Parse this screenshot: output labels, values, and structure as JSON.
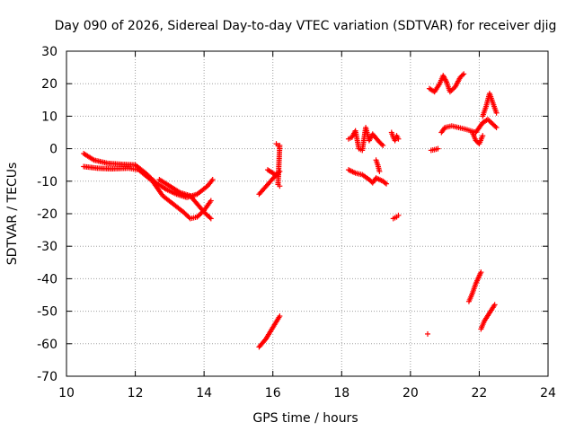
{
  "chart_data": {
    "type": "scatter",
    "title": "Day 090 of 2026, Sidereal Day-to-day VTEC variation (SDTVAR) for receiver djig",
    "xlabel": "GPS time / hours",
    "ylabel": "SDTVAR / TECUs",
    "xlim": [
      10,
      24
    ],
    "ylim": [
      -70,
      30
    ],
    "xticks": [
      10,
      12,
      14,
      16,
      18,
      20,
      22,
      24
    ],
    "yticks": [
      -70,
      -60,
      -50,
      -40,
      -30,
      -20,
      -10,
      0,
      10,
      20,
      30
    ],
    "grid": true,
    "marker": "+",
    "color": "#ff0000",
    "series": [
      {
        "name": "track-a",
        "points": [
          [
            10.5,
            -1.5
          ],
          [
            10.8,
            -3.5
          ],
          [
            11.2,
            -4.5
          ],
          [
            11.6,
            -4.8
          ],
          [
            12.0,
            -5.0
          ],
          [
            12.3,
            -7.5
          ],
          [
            12.6,
            -10.5
          ],
          [
            12.9,
            -12.5
          ],
          [
            13.2,
            -14.0
          ],
          [
            13.5,
            -15.0
          ],
          [
            13.8,
            -14.0
          ],
          [
            14.1,
            -11.5
          ],
          [
            14.25,
            -9.5
          ]
        ]
      },
      {
        "name": "track-b",
        "points": [
          [
            10.5,
            -5.5
          ],
          [
            10.9,
            -6.0
          ],
          [
            11.3,
            -6.2
          ],
          [
            11.8,
            -6.0
          ],
          [
            12.1,
            -6.5
          ],
          [
            12.5,
            -10.0
          ],
          [
            12.8,
            -14.5
          ],
          [
            13.1,
            -17.0
          ],
          [
            13.4,
            -19.5
          ],
          [
            13.6,
            -21.5
          ],
          [
            13.8,
            -21.0
          ],
          [
            14.0,
            -19.0
          ],
          [
            14.2,
            -16.0
          ]
        ]
      },
      {
        "name": "track-c",
        "points": [
          [
            12.7,
            -9.5
          ],
          [
            13.0,
            -11.5
          ],
          [
            13.3,
            -13.5
          ],
          [
            13.6,
            -14.5
          ],
          [
            13.8,
            -17.0
          ],
          [
            14.0,
            -19.5
          ],
          [
            14.2,
            -21.5
          ]
        ]
      },
      {
        "name": "track-d",
        "points": [
          [
            15.6,
            -14.0
          ],
          [
            15.85,
            -11.0
          ],
          [
            16.1,
            -8.0
          ],
          [
            16.2,
            -7.0
          ]
        ]
      },
      {
        "name": "track-e",
        "points": [
          [
            15.85,
            -6.5
          ],
          [
            16.0,
            -7.5
          ],
          [
            16.15,
            -8.5
          ]
        ]
      },
      {
        "name": "track-f",
        "points": [
          [
            16.1,
            1.5
          ],
          [
            16.15,
            1.0
          ],
          [
            16.2,
            1.0
          ],
          [
            16.15,
            -11.0
          ],
          [
            16.2,
            -11.5
          ]
        ]
      },
      {
        "name": "track-g",
        "points": [
          [
            15.6,
            -61.0
          ],
          [
            15.8,
            -58.5
          ],
          [
            16.0,
            -55.0
          ],
          [
            16.2,
            -51.5
          ]
        ]
      },
      {
        "name": "track-h",
        "points": [
          [
            18.2,
            3.0
          ],
          [
            18.3,
            3.5
          ],
          [
            18.4,
            5.5
          ],
          [
            18.5,
            0.0
          ],
          [
            18.6,
            -0.5
          ],
          [
            18.7,
            6.5
          ],
          [
            18.8,
            2.5
          ],
          [
            18.9,
            4.5
          ],
          [
            19.1,
            2.0
          ],
          [
            19.2,
            1.0
          ]
        ]
      },
      {
        "name": "track-i",
        "points": [
          [
            18.2,
            -6.5
          ],
          [
            18.4,
            -7.5
          ],
          [
            18.6,
            -8.0
          ],
          [
            18.8,
            -9.5
          ],
          [
            18.9,
            -10.5
          ],
          [
            19.0,
            -9.0
          ],
          [
            19.2,
            -10.0
          ],
          [
            19.3,
            -10.8
          ]
        ]
      },
      {
        "name": "track-j",
        "points": [
          [
            19.0,
            -3.5
          ],
          [
            19.05,
            -5.0
          ],
          [
            19.1,
            -7.0
          ]
        ]
      },
      {
        "name": "track-k",
        "points": [
          [
            19.45,
            5.0
          ],
          [
            19.5,
            3.5
          ],
          [
            19.55,
            2.5
          ],
          [
            19.6,
            4.0
          ],
          [
            19.65,
            3.0
          ]
        ]
      },
      {
        "name": "track-l",
        "points": [
          [
            19.5,
            -21.5
          ],
          [
            19.6,
            -21.0
          ],
          [
            19.65,
            -20.5
          ]
        ]
      },
      {
        "name": "track-m",
        "points": [
          [
            20.5,
            -57.0
          ]
        ]
      },
      {
        "name": "track-n",
        "points": [
          [
            20.6,
            -0.5
          ],
          [
            20.7,
            -0.3
          ],
          [
            20.8,
            0.0
          ]
        ]
      },
      {
        "name": "track-o",
        "points": [
          [
            20.55,
            18.5
          ],
          [
            20.7,
            17.5
          ],
          [
            20.85,
            20.0
          ],
          [
            20.95,
            22.5
          ],
          [
            21.05,
            20.5
          ],
          [
            21.15,
            17.5
          ],
          [
            21.3,
            19.0
          ],
          [
            21.45,
            22.0
          ],
          [
            21.55,
            23.0
          ]
        ]
      },
      {
        "name": "track-p",
        "points": [
          [
            20.9,
            5.0
          ],
          [
            21.0,
            6.5
          ],
          [
            21.2,
            7.0
          ],
          [
            21.4,
            6.5
          ],
          [
            21.6,
            6.0
          ],
          [
            21.75,
            5.5
          ],
          [
            21.9,
            5.0
          ],
          [
            22.0,
            6.5
          ],
          [
            22.1,
            8.0
          ],
          [
            22.25,
            9.0
          ],
          [
            22.4,
            7.5
          ],
          [
            22.5,
            6.5
          ]
        ]
      },
      {
        "name": "track-q",
        "points": [
          [
            21.8,
            5.0
          ],
          [
            21.9,
            2.5
          ],
          [
            22.0,
            1.5
          ],
          [
            22.1,
            4.0
          ]
        ]
      },
      {
        "name": "track-r",
        "points": [
          [
            22.1,
            10.0
          ],
          [
            22.2,
            13.0
          ],
          [
            22.3,
            17.0
          ],
          [
            22.4,
            14.0
          ],
          [
            22.5,
            11.0
          ]
        ]
      },
      {
        "name": "track-s",
        "points": [
          [
            21.7,
            -47.0
          ],
          [
            21.8,
            -44.5
          ],
          [
            21.9,
            -41.5
          ],
          [
            22.05,
            -38.0
          ]
        ]
      },
      {
        "name": "track-t",
        "points": [
          [
            22.05,
            -55.5
          ],
          [
            22.15,
            -53.0
          ],
          [
            22.3,
            -50.5
          ],
          [
            22.45,
            -48.0
          ]
        ]
      }
    ]
  }
}
